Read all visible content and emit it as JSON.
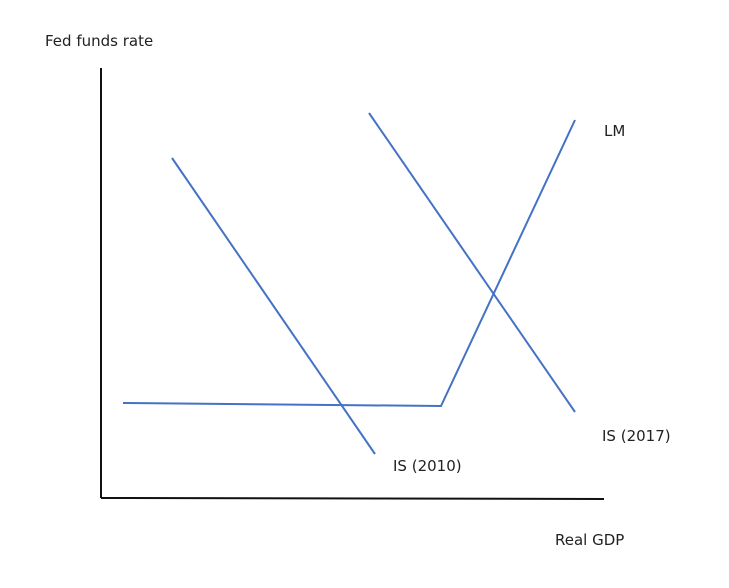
{
  "diagram": {
    "y_axis_label": "Fed funds rate",
    "x_axis_label": "Real GDP",
    "curves": {
      "is_2010": {
        "label": "IS (2010)"
      },
      "is_2017": {
        "label": "IS (2017)"
      },
      "lm": {
        "label": "LM"
      }
    },
    "colors": {
      "curve": "#4472C4",
      "axis": "#111111"
    }
  }
}
